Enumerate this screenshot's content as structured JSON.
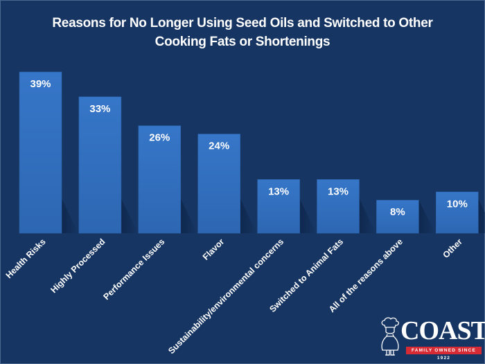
{
  "chart_data": {
    "type": "bar",
    "title": "Reasons for No Longer Using Seed Oils and Switched to Other Cooking Fats or Shortenings",
    "title_lines": [
      "Reasons for No Longer Using Seed Oils and Switched to Other",
      "Cooking Fats or Shortenings"
    ],
    "categories": [
      "Health Risks",
      "Highly Processed",
      "Performance Issues",
      "Flavor",
      "Sustainability/environmental concerns",
      "Switched to Animal Fats",
      "All of the reasons above",
      "Other"
    ],
    "values": [
      39,
      33,
      26,
      24,
      13,
      13,
      8,
      10
    ],
    "data_labels": [
      "39%",
      "33%",
      "26%",
      "24%",
      "13%",
      "13%",
      "8%",
      "10%"
    ],
    "xlabel": "",
    "ylabel": "",
    "ylim": [
      0,
      39
    ],
    "unit": "%",
    "grid": false,
    "legend": "none"
  },
  "colors": {
    "background": "#163562",
    "bar": "#3373c4",
    "text": "#ffffff",
    "logo_tag": "#d62b35"
  },
  "logo": {
    "brand": "COAST",
    "tagline": "FAMILY OWNED SINCE 1922",
    "icon": "chef-icon"
  }
}
